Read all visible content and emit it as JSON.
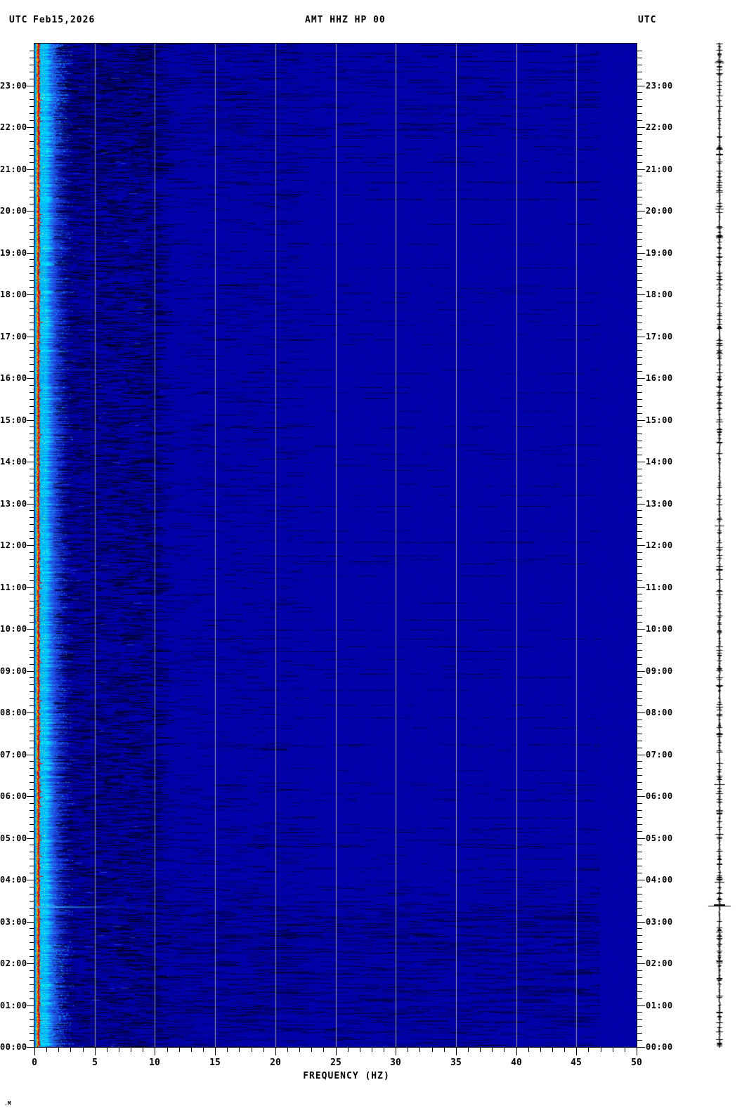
{
  "header": {
    "utc_left": "UTC",
    "date": "Feb15,2026",
    "title": "AMT HHZ HP 00",
    "utc_right": "UTC"
  },
  "axes": {
    "freq_label": "FREQUENCY (HZ)",
    "freq_tick_labels": [
      "0",
      "5",
      "10",
      "15",
      "20",
      "25",
      "30",
      "35",
      "40",
      "45",
      "50"
    ],
    "time_labels": [
      "00:00",
      "01:00",
      "02:00",
      "03:00",
      "04:00",
      "05:00",
      "06:00",
      "07:00",
      "08:00",
      "09:00",
      "10:00",
      "11:00",
      "12:00",
      "13:00",
      "14:00",
      "15:00",
      "16:00",
      "17:00",
      "18:00",
      "19:00",
      "20:00",
      "21:00",
      "22:00",
      "23:00"
    ]
  },
  "footer": {
    "corner_mark": ".M"
  },
  "chart_data": {
    "type": "heatmap",
    "title": "AMT HHZ HP 00",
    "station": "AMT",
    "channel": "HHZ",
    "filter": "HP",
    "location_code": "00",
    "date": "Feb15,2026",
    "timezone": "UTC",
    "xlabel": "FREQUENCY (HZ)",
    "x_range_hz": [
      0,
      50
    ],
    "x_major_tick_step_hz": 5,
    "x_minor_tick_step_hz": 1,
    "y_axis": "time of day UTC, 00:00 at bottom to 24:00 at top, labels both sides",
    "y_major_tick": "1 hour",
    "y_minor_tick": "10 minutes",
    "grid": {
      "vertical_gridlines_hz": [
        5,
        10,
        15,
        20,
        25,
        30,
        35,
        40,
        45
      ],
      "color": "#9a9a9a"
    },
    "palette": {
      "background": "#0000a8",
      "streak_dark": "#000030",
      "band_red": "#d80a00",
      "band_orange": "#ff8000",
      "band_yellow": "#ffd600",
      "band_green": "#46d22c",
      "band_cyan": "#00e4ff",
      "band_blue": "#2356e8",
      "gridline": "#9a9a9a",
      "trace": "#000000",
      "event_cyan": "#3cd2ff",
      "text": "#000000"
    },
    "features": [
      {
        "name": "microseism-band",
        "desc": "continuous bright band 0-1.5 Hz all day: red/orange core near 0.2-0.3 Hz flanked by yellow-green at lowest bins and a cyan halo fading to blue by ~2 Hz; band widens with extra cyan speckle near 00:00-02:00 and 22:00-24:00"
      },
      {
        "name": "broadband-noise-streaks",
        "desc": "fine dark horizontal dashed streaks, dense from 1.5-10 Hz all day, sparse isolated full-width dashed rows mid-day, dense full-width dashes from ~00:00-02:50 and moderate near 23:00-24:00"
      },
      {
        "name": "event-0250",
        "desc": "short broadband cyan streak at ~02:50 reaching ~6 Hz with matching amplitude excursion on right-hand seismogram trace"
      },
      {
        "name": "faint-streak-1610",
        "desc": "faint light-blue streak at ~16:10 reaching ~12 Hz"
      }
    ],
    "side_trace": {
      "desc": "thin black vertical amplitude trace in right margin spanning full 24 h, largest excursion at ~02:50",
      "color": "#000000"
    }
  }
}
